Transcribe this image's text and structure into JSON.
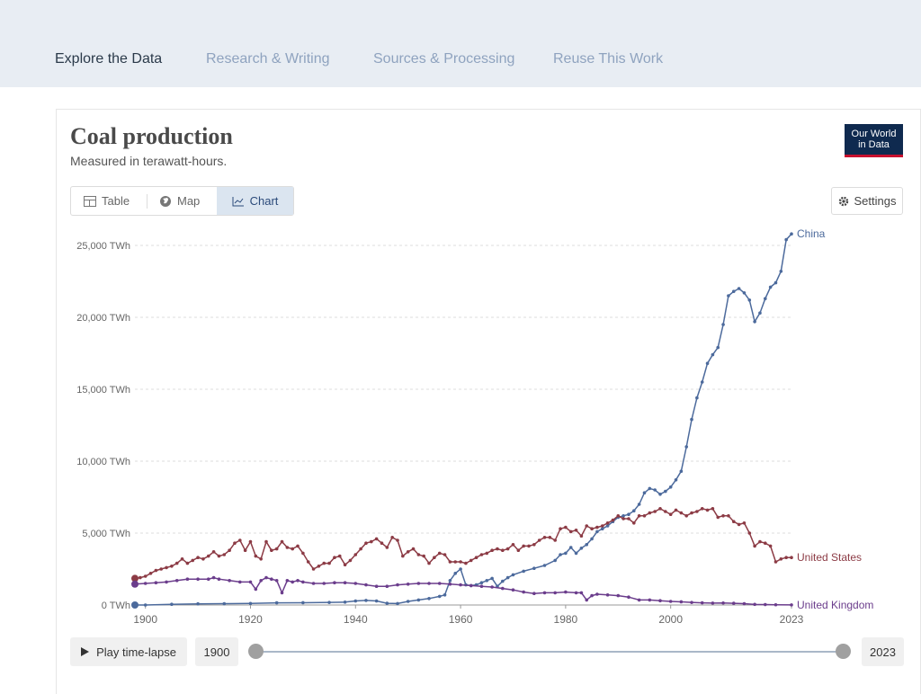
{
  "nav": {
    "tabs": [
      {
        "label": "Explore the Data",
        "active": true
      },
      {
        "label": "Research & Writing",
        "active": false
      },
      {
        "label": "Sources & Processing",
        "active": false
      },
      {
        "label": "Reuse This Work",
        "active": false
      }
    ]
  },
  "header": {
    "title": "Coal production",
    "subtitle": "Measured in terawatt-hours.",
    "logo_line1": "Our World",
    "logo_line2": "in Data"
  },
  "view_tabs": [
    {
      "label": "Table",
      "icon": "table-icon",
      "active": false
    },
    {
      "label": "Map",
      "icon": "globe-icon",
      "active": false
    },
    {
      "label": "Chart",
      "icon": "line-chart-icon",
      "active": true
    }
  ],
  "settings_label": "Settings",
  "controls": {
    "play_label": "Play time-lapse",
    "start_year": "1900",
    "end_year": "2023"
  },
  "chart_data": {
    "type": "line",
    "title": "Coal production",
    "subtitle": "Measured in terawatt-hours.",
    "xlim": [
      1898,
      2023
    ],
    "ylim": [
      0,
      25000
    ],
    "x_ticks": [
      "1900",
      "1920",
      "1940",
      "1960",
      "1980",
      "2000",
      "2023"
    ],
    "y_ticks": [
      "0 TWh",
      "5,000 TWh",
      "10,000 TWh",
      "15,000 TWh",
      "20,000 TWh",
      "25,000 TWh"
    ],
    "grid": "horizontal",
    "legend": "inline-end-labels",
    "series": [
      {
        "name": "China",
        "color": "#4c6a9c",
        "points": [
          [
            1898,
            0
          ],
          [
            1900,
            0
          ],
          [
            1905,
            50
          ],
          [
            1910,
            80
          ],
          [
            1915,
            90
          ],
          [
            1920,
            110
          ],
          [
            1925,
            150
          ],
          [
            1930,
            160
          ],
          [
            1935,
            180
          ],
          [
            1938,
            200
          ],
          [
            1940,
            280
          ],
          [
            1942,
            320
          ],
          [
            1944,
            280
          ],
          [
            1946,
            120
          ],
          [
            1948,
            100
          ],
          [
            1950,
            250
          ],
          [
            1952,
            350
          ],
          [
            1954,
            450
          ],
          [
            1956,
            600
          ],
          [
            1957,
            700
          ],
          [
            1958,
            1700
          ],
          [
            1959,
            2200
          ],
          [
            1960,
            2500
          ],
          [
            1961,
            1400
          ],
          [
            1962,
            1350
          ],
          [
            1963,
            1400
          ],
          [
            1964,
            1550
          ],
          [
            1965,
            1700
          ],
          [
            1966,
            1850
          ],
          [
            1967,
            1300
          ],
          [
            1968,
            1650
          ],
          [
            1969,
            1900
          ],
          [
            1970,
            2100
          ],
          [
            1972,
            2350
          ],
          [
            1974,
            2550
          ],
          [
            1976,
            2750
          ],
          [
            1978,
            3100
          ],
          [
            1979,
            3500
          ],
          [
            1980,
            3600
          ],
          [
            1981,
            4000
          ],
          [
            1982,
            3600
          ],
          [
            1983,
            3950
          ],
          [
            1984,
            4200
          ],
          [
            1985,
            4600
          ],
          [
            1986,
            5100
          ],
          [
            1987,
            5300
          ],
          [
            1988,
            5500
          ],
          [
            1989,
            5800
          ],
          [
            1990,
            6100
          ],
          [
            1991,
            6200
          ],
          [
            1992,
            6300
          ],
          [
            1993,
            6550
          ],
          [
            1994,
            7000
          ],
          [
            1995,
            7800
          ],
          [
            1996,
            8100
          ],
          [
            1997,
            8000
          ],
          [
            1998,
            7700
          ],
          [
            1999,
            7900
          ],
          [
            2000,
            8200
          ],
          [
            2001,
            8700
          ],
          [
            2002,
            9300
          ],
          [
            2003,
            11000
          ],
          [
            2004,
            12900
          ],
          [
            2005,
            14400
          ],
          [
            2006,
            15500
          ],
          [
            2007,
            16800
          ],
          [
            2008,
            17400
          ],
          [
            2009,
            17900
          ],
          [
            2010,
            19500
          ],
          [
            2011,
            21500
          ],
          [
            2012,
            21800
          ],
          [
            2013,
            22000
          ],
          [
            2014,
            21700
          ],
          [
            2015,
            21200
          ],
          [
            2016,
            19700
          ],
          [
            2017,
            20300
          ],
          [
            2018,
            21300
          ],
          [
            2019,
            22100
          ],
          [
            2020,
            22400
          ],
          [
            2021,
            23200
          ],
          [
            2022,
            25400
          ],
          [
            2023,
            25800
          ]
        ]
      },
      {
        "name": "United States",
        "color": "#8c3b45",
        "points": [
          [
            1898,
            1850
          ],
          [
            1899,
            1900
          ],
          [
            1900,
            2000
          ],
          [
            1901,
            2200
          ],
          [
            1902,
            2400
          ],
          [
            1903,
            2500
          ],
          [
            1904,
            2600
          ],
          [
            1905,
            2700
          ],
          [
            1906,
            2900
          ],
          [
            1907,
            3200
          ],
          [
            1908,
            2900
          ],
          [
            1909,
            3100
          ],
          [
            1910,
            3300
          ],
          [
            1911,
            3200
          ],
          [
            1912,
            3400
          ],
          [
            1913,
            3700
          ],
          [
            1914,
            3400
          ],
          [
            1915,
            3500
          ],
          [
            1916,
            3800
          ],
          [
            1917,
            4300
          ],
          [
            1918,
            4500
          ],
          [
            1919,
            3800
          ],
          [
            1920,
            4400
          ],
          [
            1921,
            3400
          ],
          [
            1922,
            3200
          ],
          [
            1923,
            4400
          ],
          [
            1924,
            3800
          ],
          [
            1925,
            3900
          ],
          [
            1926,
            4400
          ],
          [
            1927,
            4000
          ],
          [
            1928,
            3900
          ],
          [
            1929,
            4100
          ],
          [
            1930,
            3600
          ],
          [
            1931,
            3000
          ],
          [
            1932,
            2500
          ],
          [
            1933,
            2700
          ],
          [
            1934,
            2900
          ],
          [
            1935,
            2900
          ],
          [
            1936,
            3300
          ],
          [
            1937,
            3400
          ],
          [
            1938,
            2800
          ],
          [
            1939,
            3100
          ],
          [
            1940,
            3500
          ],
          [
            1941,
            3900
          ],
          [
            1942,
            4300
          ],
          [
            1943,
            4400
          ],
          [
            1944,
            4600
          ],
          [
            1945,
            4300
          ],
          [
            1946,
            4000
          ],
          [
            1947,
            4700
          ],
          [
            1948,
            4500
          ],
          [
            1949,
            3400
          ],
          [
            1950,
            3700
          ],
          [
            1951,
            3900
          ],
          [
            1952,
            3500
          ],
          [
            1953,
            3400
          ],
          [
            1954,
            2900
          ],
          [
            1955,
            3300
          ],
          [
            1956,
            3600
          ],
          [
            1957,
            3500
          ],
          [
            1958,
            3000
          ],
          [
            1959,
            3000
          ],
          [
            1960,
            3000
          ],
          [
            1961,
            2900
          ],
          [
            1962,
            3100
          ],
          [
            1963,
            3300
          ],
          [
            1964,
            3500
          ],
          [
            1965,
            3600
          ],
          [
            1966,
            3800
          ],
          [
            1967,
            3900
          ],
          [
            1968,
            3800
          ],
          [
            1969,
            3900
          ],
          [
            1970,
            4200
          ],
          [
            1971,
            3800
          ],
          [
            1972,
            4100
          ],
          [
            1973,
            4100
          ],
          [
            1974,
            4200
          ],
          [
            1975,
            4500
          ],
          [
            1976,
            4700
          ],
          [
            1977,
            4700
          ],
          [
            1978,
            4500
          ],
          [
            1979,
            5300
          ],
          [
            1980,
            5400
          ],
          [
            1981,
            5100
          ],
          [
            1982,
            5200
          ],
          [
            1983,
            4800
          ],
          [
            1984,
            5500
          ],
          [
            1985,
            5300
          ],
          [
            1986,
            5400
          ],
          [
            1987,
            5500
          ],
          [
            1988,
            5700
          ],
          [
            1989,
            5900
          ],
          [
            1990,
            6200
          ],
          [
            1991,
            6000
          ],
          [
            1992,
            6000
          ],
          [
            1993,
            5700
          ],
          [
            1994,
            6200
          ],
          [
            1995,
            6200
          ],
          [
            1996,
            6400
          ],
          [
            1997,
            6500
          ],
          [
            1998,
            6700
          ],
          [
            1999,
            6500
          ],
          [
            2000,
            6300
          ],
          [
            2001,
            6600
          ],
          [
            2002,
            6400
          ],
          [
            2003,
            6200
          ],
          [
            2004,
            6400
          ],
          [
            2005,
            6500
          ],
          [
            2006,
            6700
          ],
          [
            2007,
            6600
          ],
          [
            2008,
            6700
          ],
          [
            2009,
            6100
          ],
          [
            2010,
            6200
          ],
          [
            2011,
            6200
          ],
          [
            2012,
            5800
          ],
          [
            2013,
            5600
          ],
          [
            2014,
            5700
          ],
          [
            2015,
            5000
          ],
          [
            2016,
            4100
          ],
          [
            2017,
            4400
          ],
          [
            2018,
            4300
          ],
          [
            2019,
            4100
          ],
          [
            2020,
            3000
          ],
          [
            2021,
            3200
          ],
          [
            2022,
            3300
          ],
          [
            2023,
            3300
          ]
        ]
      },
      {
        "name": "United Kingdom",
        "color": "#6b3d8c",
        "points": [
          [
            1898,
            1450
          ],
          [
            1900,
            1500
          ],
          [
            1902,
            1550
          ],
          [
            1904,
            1600
          ],
          [
            1906,
            1700
          ],
          [
            1908,
            1800
          ],
          [
            1910,
            1800
          ],
          [
            1912,
            1800
          ],
          [
            1913,
            1900
          ],
          [
            1914,
            1800
          ],
          [
            1916,
            1700
          ],
          [
            1918,
            1600
          ],
          [
            1920,
            1600
          ],
          [
            1921,
            1100
          ],
          [
            1922,
            1700
          ],
          [
            1923,
            1900
          ],
          [
            1924,
            1800
          ],
          [
            1925,
            1700
          ],
          [
            1926,
            850
          ],
          [
            1927,
            1700
          ],
          [
            1928,
            1600
          ],
          [
            1929,
            1700
          ],
          [
            1930,
            1600
          ],
          [
            1932,
            1500
          ],
          [
            1934,
            1500
          ],
          [
            1936,
            1550
          ],
          [
            1938,
            1550
          ],
          [
            1940,
            1500
          ],
          [
            1942,
            1400
          ],
          [
            1944,
            1300
          ],
          [
            1946,
            1300
          ],
          [
            1948,
            1400
          ],
          [
            1950,
            1450
          ],
          [
            1952,
            1500
          ],
          [
            1954,
            1500
          ],
          [
            1956,
            1500
          ],
          [
            1958,
            1450
          ],
          [
            1960,
            1400
          ],
          [
            1962,
            1350
          ],
          [
            1964,
            1300
          ],
          [
            1966,
            1250
          ],
          [
            1968,
            1150
          ],
          [
            1970,
            1050
          ],
          [
            1972,
            900
          ],
          [
            1974,
            800
          ],
          [
            1976,
            850
          ],
          [
            1978,
            850
          ],
          [
            1980,
            900
          ],
          [
            1982,
            850
          ],
          [
            1983,
            850
          ],
          [
            1984,
            350
          ],
          [
            1985,
            650
          ],
          [
            1986,
            750
          ],
          [
            1988,
            700
          ],
          [
            1990,
            650
          ],
          [
            1992,
            550
          ],
          [
            1994,
            350
          ],
          [
            1996,
            350
          ],
          [
            1998,
            300
          ],
          [
            2000,
            250
          ],
          [
            2002,
            220
          ],
          [
            2004,
            180
          ],
          [
            2006,
            150
          ],
          [
            2008,
            130
          ],
          [
            2010,
            140
          ],
          [
            2012,
            120
          ],
          [
            2014,
            90
          ],
          [
            2016,
            40
          ],
          [
            2018,
            30
          ],
          [
            2020,
            15
          ],
          [
            2023,
            5
          ]
        ]
      }
    ]
  }
}
